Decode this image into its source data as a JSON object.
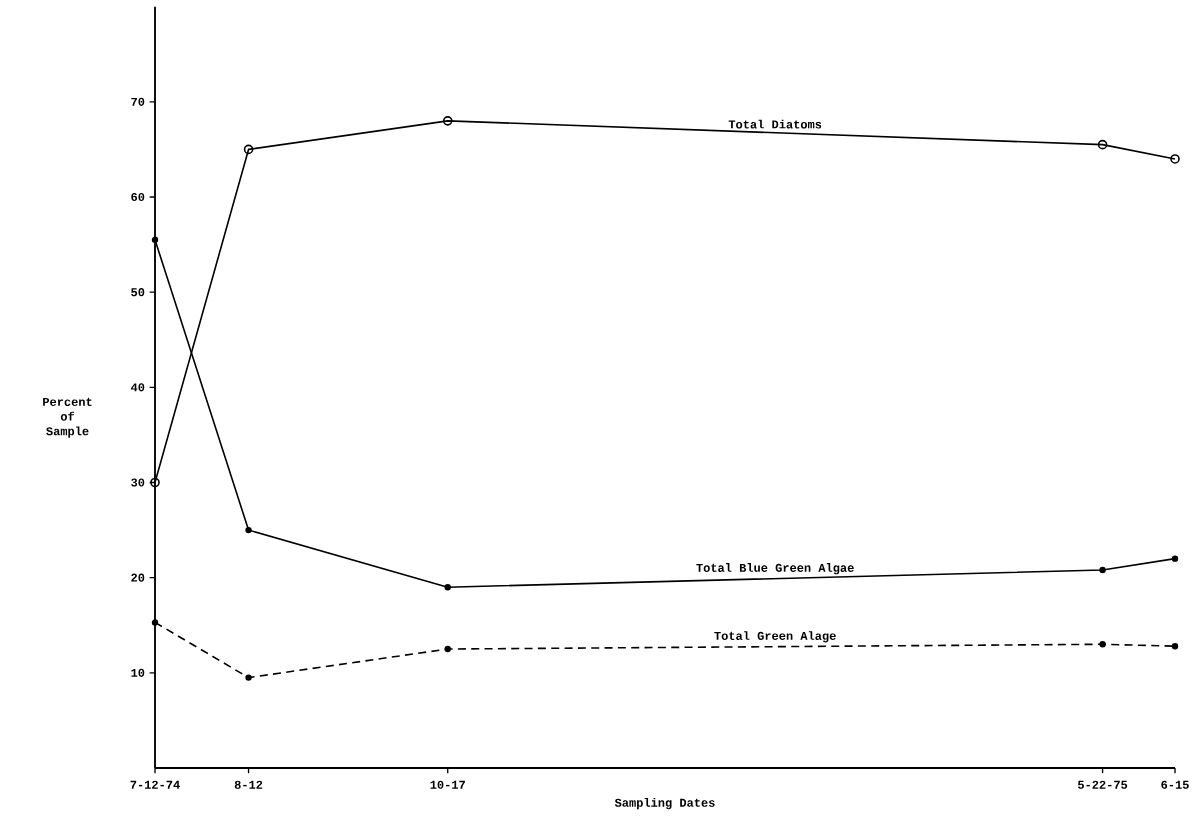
{
  "chart_data": {
    "type": "line",
    "xlabel": "Sampling Dates",
    "ylabel": "Percent of Sample",
    "x": [
      "1974-07-12",
      "1974-08-12",
      "1974-10-17",
      "1975-05-22",
      "1975-06-15"
    ],
    "xlim": [
      "1974-07-12",
      "1975-06-15"
    ],
    "xticks": [
      {
        "value": "1974-07-12",
        "label": "7-12-74"
      },
      {
        "value": "1974-08-12",
        "label": "8-12"
      },
      {
        "value": "1974-10-17",
        "label": "10-17"
      },
      {
        "value": "1975-05-22",
        "label": "5-22-75"
      },
      {
        "value": "1975-06-15",
        "label": "6-15"
      }
    ],
    "ylim": [
      0,
      80
    ],
    "yticks": [
      10,
      20,
      30,
      40,
      50,
      60,
      70
    ],
    "grid": false,
    "series": [
      {
        "name": "Total Diatoms",
        "color": "#000000",
        "marker": "circle",
        "line_style": "solid",
        "values": [
          30,
          65,
          68,
          65.5,
          64
        ]
      },
      {
        "name": "Total Blue Green Algae",
        "color": "#000000",
        "marker": "dot",
        "line_style": "solid",
        "values": [
          55.5,
          25,
          19,
          20.8,
          22
        ]
      },
      {
        "name": "Total Green Alage",
        "color": "#000000",
        "marker": "dot",
        "line_style": "dashed",
        "values": [
          15.3,
          9.5,
          12.5,
          13,
          12.8
        ]
      }
    ]
  }
}
